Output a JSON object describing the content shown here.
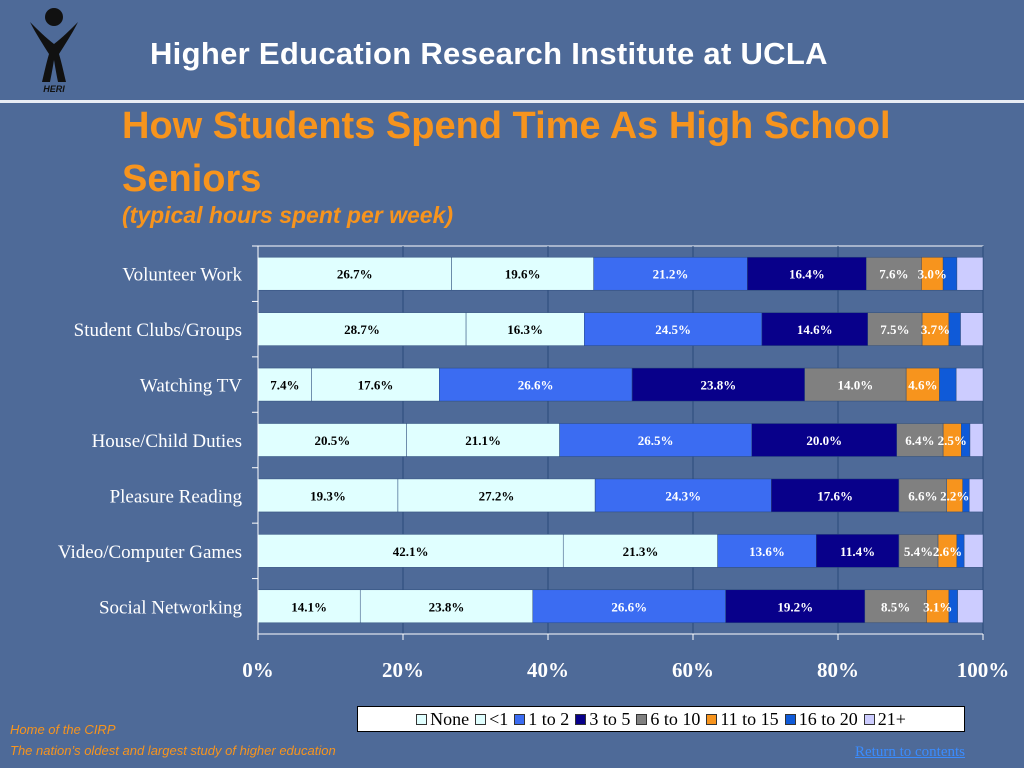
{
  "header": {
    "institute": "Higher Education Research Institute at UCLA",
    "logo_text": "HERI"
  },
  "slide": {
    "title": "How Students Spend Time As High School Seniors",
    "subtitle": "(typical hours spent per week)"
  },
  "footer": {
    "line1": "Home of the CIRP",
    "line2": "The nation’s oldest and largest study of higher education",
    "return_link": "Return to contents"
  },
  "colors": {
    "background": "#4e6a98",
    "accent": "#f7941d",
    "series": [
      "#e0ffff",
      "#e0ffff",
      "#3b6cf2",
      "#08008a",
      "#808080",
      "#f7941d",
      "#0f5ad8",
      "#ccccff"
    ]
  },
  "chart_data": {
    "type": "bar",
    "orientation": "horizontal",
    "stacked": true,
    "percent": true,
    "categories": [
      "Volunteer Work",
      "Student Clubs/Groups",
      "Watching TV",
      "House/Child Duties",
      "Pleasure Reading",
      "Video/Computer Games",
      "Social Networking"
    ],
    "series": [
      {
        "name": "None",
        "values": [
          26.7,
          28.7,
          7.4,
          20.5,
          19.3,
          42.1,
          14.1
        ]
      },
      {
        "name": "<1",
        "values": [
          19.6,
          16.3,
          17.6,
          21.1,
          27.2,
          21.3,
          23.8
        ]
      },
      {
        "name": "1 to 2",
        "values": [
          21.2,
          24.5,
          26.6,
          26.5,
          24.3,
          13.6,
          26.6
        ]
      },
      {
        "name": "3 to 5",
        "values": [
          16.4,
          14.6,
          23.8,
          20.0,
          17.6,
          11.4,
          19.2
        ]
      },
      {
        "name": "6 to 10",
        "values": [
          7.6,
          7.5,
          14.0,
          6.4,
          6.6,
          5.4,
          8.5
        ]
      },
      {
        "name": "11 to 15",
        "values": [
          3.0,
          3.7,
          4.6,
          2.5,
          2.2,
          2.6,
          3.1
        ]
      },
      {
        "name": "16 to 20",
        "values": [
          1.9,
          1.6,
          2.3,
          1.2,
          0.9,
          1.0,
          1.2
        ]
      },
      {
        "name": "21+",
        "values": [
          3.6,
          3.1,
          3.7,
          1.8,
          1.9,
          2.6,
          3.5
        ]
      }
    ],
    "data_labels": [
      [
        "26.7%",
        "19.6%",
        "21.2%",
        "16.4%",
        "7.6%",
        "3.0%",
        "",
        ""
      ],
      [
        "28.7%",
        "16.3%",
        "24.5%",
        "14.6%",
        "7.5%",
        "3.7%",
        "",
        ""
      ],
      [
        "7.4%",
        "17.6%",
        "26.6%",
        "23.8%",
        "14.0%",
        "4.6%",
        "",
        ""
      ],
      [
        "20.5%",
        "21.1%",
        "26.5%",
        "20.0%",
        "6.4%",
        "2.5%",
        "",
        ""
      ],
      [
        "19.3%",
        "27.2%",
        "24.3%",
        "17.6%",
        "6.6%",
        "2.2%",
        "",
        ""
      ],
      [
        "42.1%",
        "21.3%",
        "13.6%",
        "11.4%",
        "5.4%",
        "2.6%",
        "",
        ""
      ],
      [
        "14.1%",
        "23.8%",
        "26.6%",
        "19.2%",
        "8.5%",
        "3.1%",
        "",
        ""
      ]
    ],
    "x_ticks": [
      "0%",
      "20%",
      "40%",
      "60%",
      "80%",
      "100%"
    ],
    "xlim": [
      0,
      100
    ],
    "legend_position": "bottom-right",
    "grid": true
  }
}
